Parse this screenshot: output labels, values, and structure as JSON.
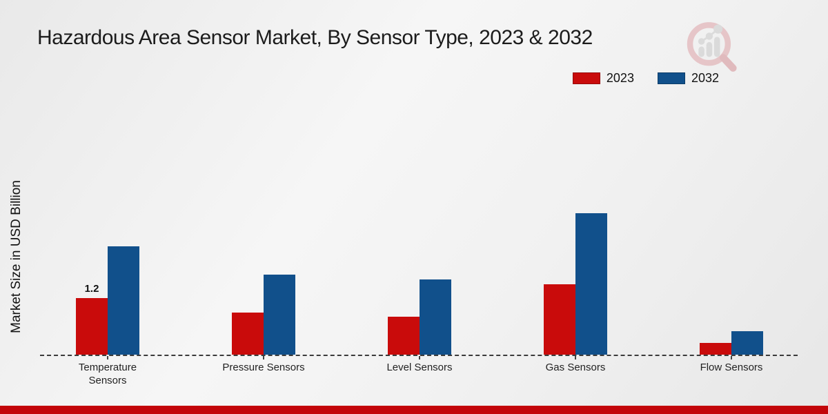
{
  "title": "Hazardous Area Sensor Market, By Sensor Type, 2023 & 2032",
  "y_axis_label": "Market Size in USD Billion",
  "legend": [
    {
      "label": "2023",
      "color": "#c90b0b"
    },
    {
      "label": "2032",
      "color": "#11508b"
    }
  ],
  "chart_data": {
    "type": "bar",
    "title": "Hazardous Area Sensor Market, By Sensor Type, 2023 & 2032",
    "categories": [
      "Temperature Sensors",
      "Pressure Sensors",
      "Level Sensors",
      "Gas Sensors",
      "Flow Sensors"
    ],
    "series": [
      {
        "name": "2023",
        "color": "#c90b0b",
        "values": [
          1.2,
          0.9,
          0.8,
          1.5,
          0.25
        ]
      },
      {
        "name": "2032",
        "color": "#11508b",
        "values": [
          2.3,
          1.7,
          1.6,
          3.0,
          0.5
        ]
      }
    ],
    "xlabel": "",
    "ylabel": "Market Size in USD Billion",
    "ylim": [
      0,
      3.5
    ],
    "grid": false,
    "axis_style": "dashed-baseline",
    "legend_position": "top-right",
    "data_labels": [
      {
        "series": "2023",
        "category": "Temperature Sensors",
        "text": "1.2"
      }
    ]
  },
  "footer": {
    "bar_color": "#c3050a"
  },
  "logo_name": "market-research-magnifier-logo"
}
